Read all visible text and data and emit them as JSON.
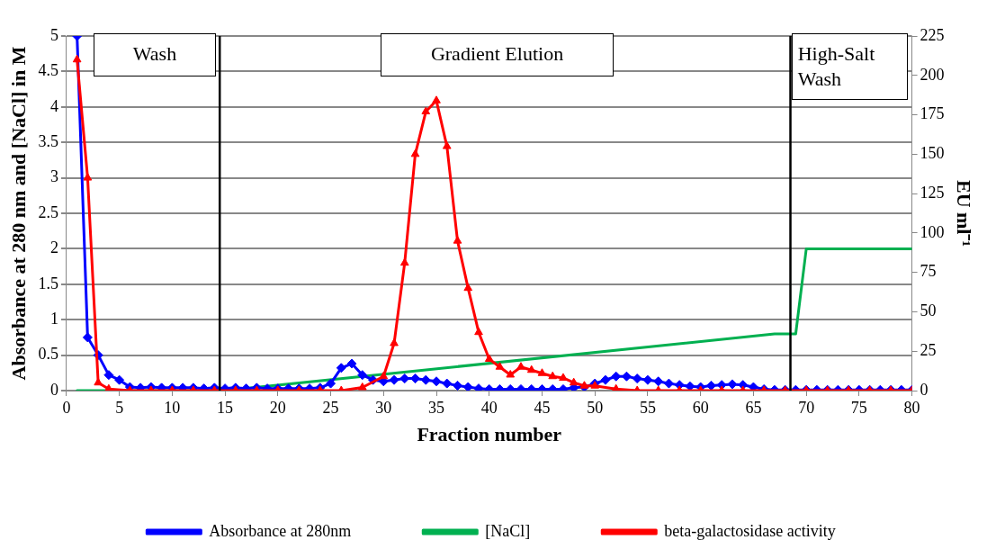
{
  "chart_data": {
    "type": "line",
    "xlabel": "Fraction number",
    "ylabel": "Absorbance at 280 nm and [NaCl] in M",
    "y2label": "EU ml⁻¹",
    "xlim": [
      0,
      80
    ],
    "xticks": [
      0,
      5,
      10,
      15,
      20,
      25,
      30,
      35,
      40,
      45,
      50,
      55,
      60,
      65,
      70,
      75,
      80
    ],
    "ylim": [
      0,
      5
    ],
    "yticks": [
      0,
      0.5,
      1,
      1.5,
      2,
      2.5,
      3,
      3.5,
      4,
      4.5,
      5
    ],
    "y2lim": [
      0,
      225
    ],
    "y2ticks": [
      0,
      25,
      50,
      75,
      100,
      125,
      150,
      175,
      200,
      225
    ],
    "grid": "y",
    "legend": "bottom",
    "line_style": "solid",
    "series": [
      {
        "name": "Absorbance at 280nm",
        "color": "#0000ff",
        "marker": "diamond",
        "x": [
          1,
          2,
          3,
          4,
          5,
          6,
          7,
          8,
          9,
          10,
          11,
          12,
          13,
          14,
          15,
          16,
          17,
          18,
          19,
          20,
          21,
          22,
          23,
          24,
          25,
          26,
          27,
          28,
          29,
          30,
          31,
          32,
          33,
          34,
          35,
          36,
          37,
          38,
          39,
          40,
          41,
          42,
          43,
          44,
          45,
          46,
          47,
          48,
          49,
          50,
          51,
          52,
          53,
          54,
          55,
          56,
          57,
          58,
          59,
          60,
          61,
          62,
          63,
          64,
          65,
          66,
          67,
          68,
          69,
          70,
          71,
          72,
          73,
          74,
          75,
          76,
          77,
          78,
          79,
          80
        ],
        "values": [
          5,
          0.75,
          0.5,
          0.22,
          0.15,
          0.05,
          0.04,
          0.05,
          0.04,
          0.04,
          0.04,
          0.04,
          0.03,
          0.04,
          0.03,
          0.04,
          0.03,
          0.04,
          0.03,
          0.03,
          0.03,
          0.03,
          0.03,
          0.04,
          0.1,
          0.32,
          0.38,
          0.22,
          0.15,
          0.13,
          0.15,
          0.17,
          0.17,
          0.15,
          0.13,
          0.1,
          0.07,
          0.05,
          0.03,
          0.02,
          0.02,
          0.02,
          0.02,
          0.02,
          0.02,
          0.02,
          0.02,
          0.04,
          0.05,
          0.1,
          0.15,
          0.2,
          0.2,
          0.17,
          0.15,
          0.13,
          0.1,
          0.08,
          0.06,
          0.05,
          0.07,
          0.08,
          0.09,
          0.08,
          0.05,
          0.02,
          0.01,
          0.01,
          0.01,
          0.01,
          0.01,
          0.01,
          0.01,
          0.01,
          0.01,
          0.01,
          0.01,
          0.01,
          0.01,
          0.01
        ]
      },
      {
        "name": "[NaCl]",
        "color": "#00b050",
        "marker": "none",
        "x": [
          1,
          15,
          67,
          69,
          70,
          80
        ],
        "values": [
          0,
          0,
          0.8,
          0.8,
          2,
          2
        ]
      },
      {
        "name": "beta-galactosidase activity",
        "color": "#ff0000",
        "marker": "triangle",
        "axis": "y2",
        "x": [
          1,
          2,
          3,
          4,
          6,
          8,
          10,
          12,
          14,
          16,
          18,
          20,
          22,
          24,
          26,
          28,
          30,
          31,
          32,
          33,
          34,
          35,
          36,
          37,
          38,
          39,
          40,
          41,
          42,
          43,
          44,
          45,
          46,
          47,
          48,
          49,
          50,
          52,
          54,
          56,
          58,
          60,
          62,
          64,
          66,
          68,
          70,
          72,
          74,
          76,
          78,
          80
        ],
        "values": [
          210,
          135,
          5,
          1,
          0,
          0,
          0,
          0,
          0,
          0,
          0,
          0,
          0,
          0,
          0,
          2,
          9,
          30,
          81,
          150,
          177,
          184,
          155,
          95,
          65,
          37,
          20,
          15,
          10,
          15,
          13,
          11,
          9,
          8,
          5,
          3,
          3,
          1,
          0,
          0,
          0,
          0,
          0,
          0,
          0,
          0,
          0,
          0,
          0,
          0,
          0,
          0
        ]
      }
    ],
    "ref_lines": [
      {
        "axis": "x",
        "value": 14.5,
        "color": "#000000"
      },
      {
        "axis": "x",
        "value": 68.5,
        "color": "#000000"
      }
    ],
    "annotations": [
      "Wash",
      "Gradient Elution",
      "High-Salt Wash"
    ]
  }
}
